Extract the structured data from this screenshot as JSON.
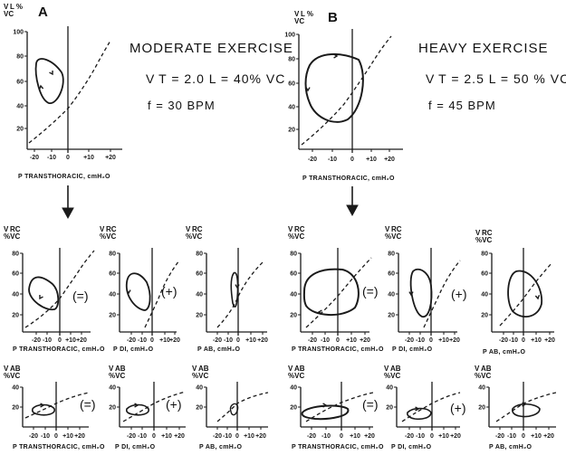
{
  "panels": {
    "a": {
      "letter": "A",
      "title": "MODERATE EXERCISE",
      "vt": "V T = 2.0 L = 40% VC",
      "freq": "f = 30 BPM"
    },
    "b": {
      "letter": "B",
      "title": "HEAVY EXERCISE",
      "vt": "V T = 2.5 L = 50 % VC",
      "freq": "f = 45 BPM"
    }
  },
  "top_plot": {
    "ylabel": "V L % VC",
    "y_ticks": [
      "100",
      "80",
      "60",
      "40",
      "20"
    ],
    "x_ticks": [
      "-20",
      "-10",
      "0",
      "+10",
      "+20"
    ],
    "xlabel_a": "P TRANSTHORACIC, cmH₂O",
    "xlabel_b": "P TRANSTHORACIC, cmH₂O"
  },
  "mid_row": {
    "ylabel": "V RC %VC",
    "y_ticks": [
      "80",
      "60",
      "40",
      "20"
    ],
    "x_ticks": [
      "-20",
      "-10",
      "0",
      "+10",
      "+20"
    ],
    "xlabels": [
      "P TRANSTHORACIC, cmH₂O",
      "P DI, cmH₂O",
      "P AB, cmH₂O",
      "P TRANSTHORACIC, cmH₂O",
      "P DI, cmH₂O",
      "P AB, cmH₂O"
    ]
  },
  "bot_row": {
    "ylabel": "V AB %VC",
    "y_ticks": [
      "40",
      "20"
    ],
    "x_ticks": [
      "-20",
      "-10",
      "0",
      "+10",
      "+20"
    ],
    "xlabels": [
      "P TRANSTHORACIC, cmH₂O",
      "P DI, cmH₂O",
      "P AB, cmH₂O",
      "P TRANSTHORACIC, cmH₂O",
      "P DI, cmH₂O",
      "P AB, cmH₂O"
    ]
  },
  "operators": {
    "equals": "(=)",
    "plus": "(+)"
  }
}
